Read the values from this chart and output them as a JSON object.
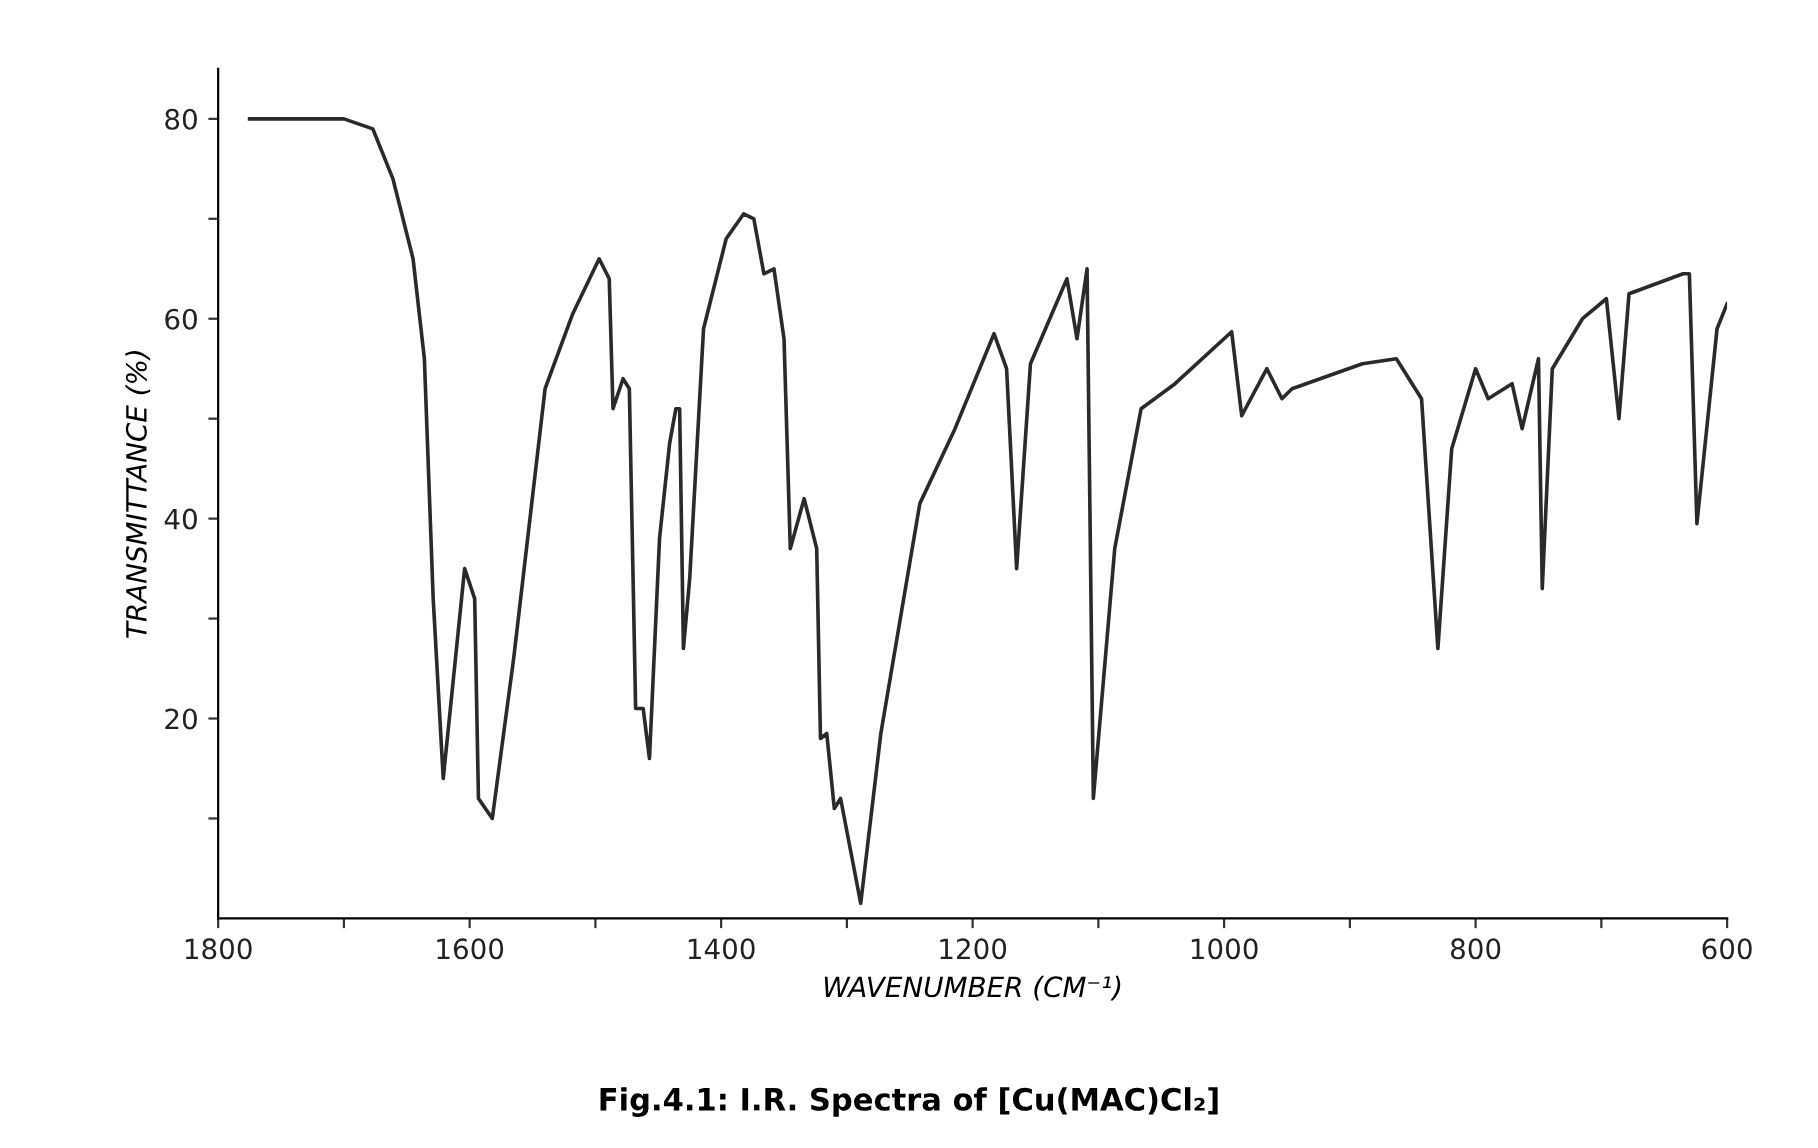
{
  "chart_data": {
    "type": "line",
    "xlabel": "WAVENUMBER (CM⁻¹)",
    "ylabel": "TRANSMITTANCE (%)",
    "annotations": [
      "Fig.4.1: I.R. Spectra of [Cu(MAC)Cl₂]"
    ],
    "series": [
      {
        "color": "#2a2a2a",
        "x": [
          1775,
          1700,
          1677,
          1661,
          1645,
          1636,
          1629,
          1621,
          1604,
          1596,
          1593,
          1582,
          1565,
          1540,
          1518,
          1497,
          1489,
          1486,
          1478,
          1473,
          1468,
          1462,
          1457,
          1449,
          1441,
          1436,
          1433,
          1430,
          1425,
          1414,
          1396,
          1382,
          1374,
          1366,
          1358,
          1350,
          1345,
          1334,
          1324,
          1321,
          1316,
          1310,
          1305,
          1289,
          1273,
          1242,
          1214,
          1183,
          1173,
          1165,
          1154,
          1125,
          1117,
          1109,
          1104,
          1087,
          1066,
          1039,
          994,
          986,
          966,
          954,
          946,
          890,
          863,
          843,
          830,
          819,
          800,
          790,
          771,
          763,
          750,
          747,
          739,
          715,
          696,
          686,
          678,
          635,
          630,
          624,
          608,
          600
        ],
        "values": [
          80,
          80,
          79,
          74,
          66,
          56,
          32,
          14,
          35,
          32,
          12,
          10,
          26,
          53,
          60.5,
          66,
          64,
          51,
          54,
          53,
          21,
          21,
          16,
          38,
          47.5,
          51,
          51,
          27,
          34,
          59,
          68,
          70.5,
          70,
          64.5,
          65,
          58,
          37,
          42,
          37,
          18,
          18.5,
          11,
          12,
          1.5,
          18.5,
          41.5,
          49,
          58.5,
          55,
          35,
          55.5,
          64,
          58,
          65,
          12,
          37,
          51,
          53.5,
          58.7,
          50.3,
          55,
          52,
          53,
          55.5,
          56,
          52,
          27,
          47,
          55,
          52,
          53.5,
          49,
          56,
          33,
          55,
          60,
          62,
          50,
          62.5,
          64.5,
          64.5,
          39.5,
          59,
          61.5
        ]
      }
    ],
    "xlim": [
      1800,
      600
    ],
    "ylim": [
      0,
      85
    ],
    "xticks": [
      1800,
      {
        "value": 1700,
        "label": null
      },
      1600,
      {
        "value": 1500,
        "label": null
      },
      1400,
      {
        "value": 1300,
        "label": null
      },
      1200,
      {
        "value": 1100,
        "label": null
      },
      1000,
      {
        "value": 900,
        "label": null
      },
      800,
      {
        "value": 700,
        "label": null
      },
      600
    ],
    "yticks": [
      {
        "value": 10,
        "label": null
      },
      20,
      {
        "value": 30,
        "label": null
      },
      40,
      {
        "value": 50,
        "label": null
      },
      60,
      {
        "value": 70,
        "label": null
      },
      80
    ],
    "grid": false,
    "line_style": "solid",
    "marker": "none"
  }
}
